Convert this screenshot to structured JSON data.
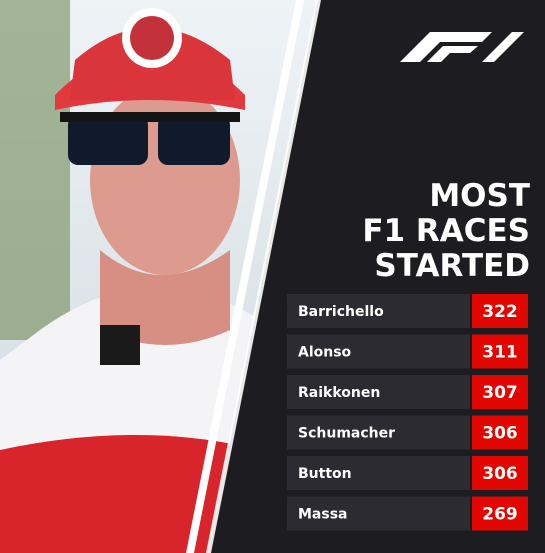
{
  "header": {
    "title_lines": [
      "MOST",
      "F1 RACES",
      "STARTED"
    ]
  },
  "table": {
    "rows": [
      [
        "Barrichello",
        "322"
      ],
      [
        "Alonso",
        "311"
      ],
      [
        "Raikkonen",
        "307"
      ],
      [
        "Schumacher",
        "306"
      ],
      [
        "Button",
        "306"
      ],
      [
        "Massa",
        "269"
      ]
    ]
  }
}
